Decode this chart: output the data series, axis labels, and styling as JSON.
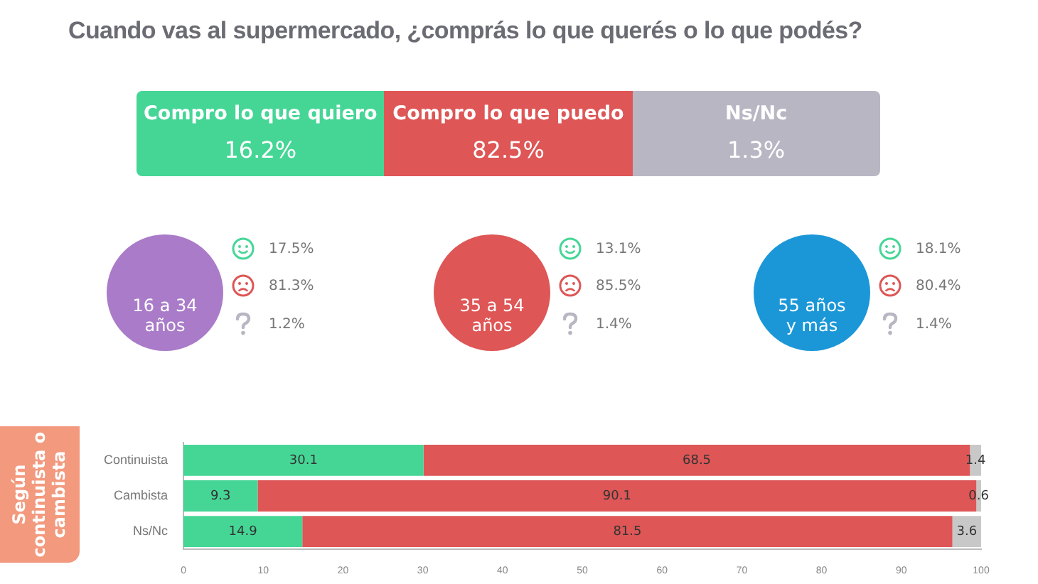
{
  "chart_data": [
    {
      "type": "other",
      "title": "Cuando vas al supermercado, ¿comprás lo que querés o lo que podés?",
      "categories": [
        "Compro lo que quiero",
        "Compro lo que puedo",
        "Ns/Nc"
      ],
      "value_labels": [
        "16.2%",
        "82.5%",
        "1.3%"
      ],
      "values": [
        16.2,
        82.5,
        1.3
      ],
      "colors": [
        "#45d696",
        "#de5656",
        "#b9b6c4"
      ]
    },
    {
      "type": "other",
      "categories": [
        "16 a 34 años",
        "35 a 54 años",
        "55 años y más"
      ],
      "colors": [
        "#a97bc8",
        "#de5656",
        "#1b97d8"
      ],
      "series": [
        {
          "color": "#45d696",
          "values": [
            17.5,
            13.1,
            18.1
          ],
          "value_labels": [
            "17.5%",
            "13.1%",
            "18.1%"
          ]
        },
        {
          "color": "#de5656",
          "values": [
            81.3,
            85.5,
            80.4
          ],
          "value_labels": [
            "81.3%",
            "85.5%",
            "80.4%"
          ]
        },
        {
          "color": "#b9b6c4",
          "values": [
            1.2,
            1.4,
            1.4
          ],
          "value_labels": [
            "1.2%",
            "1.4%",
            "1.4%"
          ]
        }
      ]
    },
    {
      "type": "bar",
      "orientation": "horizontal",
      "stacked": true,
      "ylabel": "Según continuista o cambista",
      "categories": [
        "Continuista",
        "Cambista",
        "Ns/Nc"
      ],
      "series": [
        {
          "color": "#45d696",
          "values": [
            30.1,
            9.3,
            14.9
          ]
        },
        {
          "color": "#de5656",
          "values": [
            68.5,
            90.1,
            81.5
          ]
        },
        {
          "color": "#c8c8c8",
          "values": [
            1.4,
            0.6,
            3.6
          ]
        }
      ],
      "xlim": [
        0,
        100
      ],
      "xticks": [
        0,
        10,
        20,
        30,
        40,
        50,
        60,
        70,
        80,
        90,
        100
      ],
      "data_labels": true,
      "grid": false,
      "legend": false
    }
  ]
}
